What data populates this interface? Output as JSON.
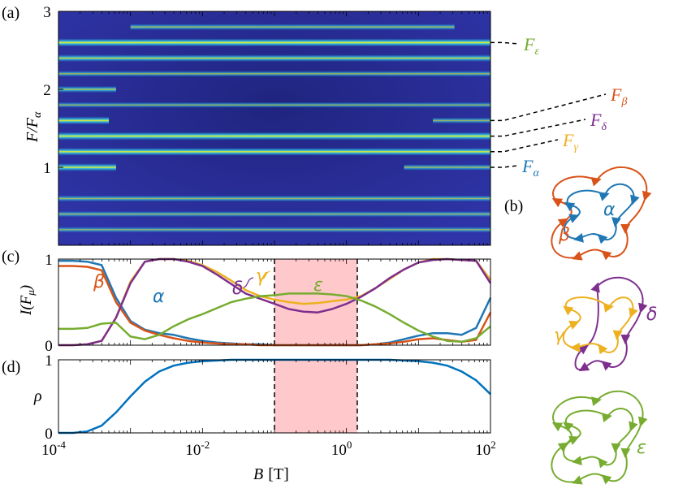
{
  "panel_labels": {
    "a": "(a)",
    "b": "(b)",
    "c": "(c)",
    "d": "(d)"
  },
  "colors": {
    "alpha": "#1f77b4",
    "beta": "#d95319",
    "gamma": "#edb120",
    "delta": "#7e2f8e",
    "epsilon": "#77ac30",
    "rho": "#0072bd",
    "shade": "#ffc9cc",
    "heat_bg": "#2a2f9c",
    "heat_dark": "#1f247f"
  },
  "chart_data": [
    {
      "panel": "(a)",
      "type": "heatmap",
      "ylabel_main": "F/F",
      "ylabel_sub": "α",
      "ylim": [
        0,
        3
      ],
      "yticks": [
        1,
        2,
        3
      ],
      "xlim_log10": [
        -4,
        2
      ],
      "bands": [
        {
          "F": 0.2,
          "intensity": 0.5,
          "xfrom_log10": -4,
          "xto_log10": 2
        },
        {
          "F": 0.4,
          "intensity": 0.55,
          "xfrom_log10": -4,
          "xto_log10": 2
        },
        {
          "F": 0.6,
          "intensity": 0.6,
          "xfrom_log10": -4,
          "xto_log10": 2
        },
        {
          "F": 1.0,
          "intensity": 0.95,
          "xfrom_log10": -4,
          "xto_log10": -3.2
        },
        {
          "F": 1.0,
          "intensity": 0.6,
          "xfrom_log10": 0.8,
          "xto_log10": 2
        },
        {
          "F": 1.2,
          "intensity": 0.95,
          "xfrom_log10": -4,
          "xto_log10": 2
        },
        {
          "F": 1.4,
          "intensity": 1.0,
          "xfrom_log10": -4,
          "xto_log10": 2
        },
        {
          "F": 1.6,
          "intensity": 0.95,
          "xfrom_log10": -4,
          "xto_log10": -3.3
        },
        {
          "F": 1.6,
          "intensity": 0.55,
          "xfrom_log10": 1.2,
          "xto_log10": 2
        },
        {
          "F": 1.8,
          "intensity": 0.5,
          "xfrom_log10": -4,
          "xto_log10": 2
        },
        {
          "F": 2.0,
          "intensity": 0.7,
          "xfrom_log10": -4,
          "xto_log10": -3.2
        },
        {
          "F": 2.2,
          "intensity": 0.55,
          "xfrom_log10": -4,
          "xto_log10": 2
        },
        {
          "F": 2.4,
          "intensity": 0.8,
          "xfrom_log10": -4,
          "xto_log10": 2
        },
        {
          "F": 2.6,
          "intensity": 1.0,
          "xfrom_log10": -4,
          "xto_log10": 2
        },
        {
          "F": 2.8,
          "intensity": 0.6,
          "xfrom_log10": -3.0,
          "xto_log10": 1.5
        }
      ],
      "frequency_labels": [
        {
          "name": "ε",
          "F": 2.6
        },
        {
          "name": "β",
          "F": 1.6
        },
        {
          "name": "δ",
          "F": 1.4
        },
        {
          "name": "γ",
          "F": 1.2
        },
        {
          "name": "α",
          "F": 1.0
        }
      ]
    },
    {
      "panel": "(c)",
      "type": "line",
      "ylabel_main": "I(F",
      "ylabel_sub": "μ",
      "ylabel_end": ")",
      "ylim": [
        0,
        1
      ],
      "yticks": [
        0,
        1
      ],
      "xlim_log10": [
        -4,
        2
      ],
      "shaded_region_log10": [
        -1,
        0.15
      ],
      "x_log10": [
        -4,
        -3.8,
        -3.6,
        -3.4,
        -3.2,
        -3.0,
        -2.8,
        -2.6,
        -2.4,
        -2.2,
        -2.0,
        -1.8,
        -1.6,
        -1.4,
        -1.2,
        -1.0,
        -0.8,
        -0.6,
        -0.4,
        -0.2,
        0.0,
        0.2,
        0.4,
        0.6,
        0.8,
        1.0,
        1.2,
        1.4,
        1.6,
        1.8,
        2.0
      ],
      "series": [
        {
          "name": "α",
          "color_key": "alpha",
          "values": [
            0.98,
            0.98,
            0.97,
            0.93,
            0.55,
            0.28,
            0.18,
            0.14,
            0.12,
            0.08,
            0.05,
            0.03,
            0.02,
            0.01,
            0.01,
            0.0,
            0.0,
            0.0,
            0.0,
            0.0,
            0.0,
            0.0,
            0.01,
            0.03,
            0.07,
            0.11,
            0.14,
            0.14,
            0.12,
            0.2,
            0.55
          ]
        },
        {
          "name": "β",
          "color_key": "beta",
          "values": [
            0.92,
            0.92,
            0.91,
            0.87,
            0.5,
            0.26,
            0.17,
            0.12,
            0.08,
            0.05,
            0.03,
            0.02,
            0.01,
            0.01,
            0.0,
            0.0,
            0.0,
            0.0,
            0.0,
            0.0,
            0.0,
            0.0,
            0.01,
            0.02,
            0.04,
            0.07,
            0.08,
            0.06,
            0.04,
            0.06,
            0.38
          ]
        },
        {
          "name": "γ",
          "color_key": "gamma",
          "values": [
            0.0,
            0.0,
            0.01,
            0.05,
            0.32,
            0.74,
            0.97,
            1.0,
            1.0,
            0.98,
            0.93,
            0.85,
            0.75,
            0.64,
            0.57,
            0.53,
            0.5,
            0.48,
            0.49,
            0.51,
            0.53,
            0.57,
            0.66,
            0.77,
            0.88,
            0.96,
            1.0,
            1.0,
            0.99,
            0.98,
            0.76
          ]
        },
        {
          "name": "δ",
          "color_key": "delta",
          "values": [
            0.0,
            0.0,
            0.01,
            0.05,
            0.32,
            0.72,
            0.97,
            1.0,
            1.0,
            0.97,
            0.92,
            0.82,
            0.71,
            0.6,
            0.54,
            0.48,
            0.42,
            0.39,
            0.38,
            0.42,
            0.48,
            0.56,
            0.66,
            0.78,
            0.88,
            0.96,
            0.99,
            1.0,
            0.99,
            0.98,
            0.72
          ]
        },
        {
          "name": "ε",
          "color_key": "epsilon",
          "values": [
            0.19,
            0.19,
            0.2,
            0.25,
            0.26,
            0.1,
            0.07,
            0.12,
            0.22,
            0.3,
            0.36,
            0.43,
            0.5,
            0.54,
            0.57,
            0.58,
            0.6,
            0.6,
            0.6,
            0.59,
            0.57,
            0.52,
            0.45,
            0.36,
            0.26,
            0.17,
            0.1,
            0.05,
            0.04,
            0.08,
            0.22
          ]
        }
      ],
      "labels": {
        "alpha": "α",
        "beta": "β",
        "gamma": "γ",
        "delta": "δ",
        "epsilon": "ε"
      }
    },
    {
      "panel": "(d)",
      "type": "line",
      "ylabel": "ρ",
      "xlabel_main": "B",
      "xlabel_unit": "[T]",
      "ylim": [
        0,
        1
      ],
      "yticks": [
        0,
        1
      ],
      "xlim_log10": [
        -4,
        2
      ],
      "xtick_labels": [
        {
          "base": "10",
          "exp": "-4",
          "log10": -4
        },
        {
          "base": "10",
          "exp": "-2",
          "log10": -2
        },
        {
          "base": "10",
          "exp": "0",
          "log10": 0
        },
        {
          "base": "10",
          "exp": "2",
          "log10": 2
        }
      ],
      "shaded_region_log10": [
        -1,
        0.15
      ],
      "x_log10": [
        -4,
        -3.8,
        -3.6,
        -3.4,
        -3.2,
        -3.0,
        -2.8,
        -2.6,
        -2.4,
        -2.2,
        -2.0,
        -1.8,
        -1.6,
        -1.4,
        -1.2,
        -1.0,
        -0.8,
        -0.6,
        -0.4,
        -0.2,
        0.0,
        0.2,
        0.4,
        0.6,
        0.8,
        1.0,
        1.2,
        1.4,
        1.6,
        1.8,
        2.0
      ],
      "series": [
        {
          "name": "ρ",
          "color_key": "rho",
          "values": [
            0.0,
            0.0,
            0.02,
            0.1,
            0.28,
            0.5,
            0.7,
            0.84,
            0.92,
            0.96,
            0.98,
            0.99,
            1.0,
            1.0,
            1.0,
            1.0,
            1.0,
            1.0,
            1.0,
            1.0,
            1.0,
            1.0,
            1.0,
            1.0,
            0.99,
            0.98,
            0.96,
            0.92,
            0.84,
            0.72,
            0.53
          ]
        }
      ]
    }
  ],
  "orbit_labels": {
    "b_top": [
      "α",
      "β"
    ],
    "b_mid": [
      "γ",
      "δ"
    ],
    "b_bot": [
      "ε"
    ]
  }
}
